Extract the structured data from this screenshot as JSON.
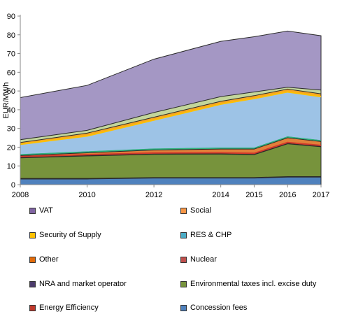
{
  "chart_data": {
    "type": "area",
    "stacked": true,
    "x": [
      2008,
      2010,
      2012,
      2014,
      2015,
      2016,
      2017
    ],
    "ylabel": "EUR/MWh",
    "ylim": [
      0,
      90
    ],
    "yticks": [
      0,
      10,
      20,
      30,
      40,
      50,
      60,
      70,
      80,
      90
    ],
    "xticks": [
      "2008",
      "2010",
      "2012",
      "2014",
      "2015",
      "2016",
      "2017"
    ],
    "grid": false,
    "legend_position": "bottom",
    "series": [
      {
        "name": "Concession fees",
        "color": "#4f81bd",
        "values": [
          3,
          3,
          3.5,
          3.5,
          3.5,
          4,
          4
        ]
      },
      {
        "name": "Energy Efficiency",
        "color": "#c0392b",
        "values": [
          0.3,
          0.3,
          0.3,
          0.3,
          0.3,
          0.3,
          0.3
        ]
      },
      {
        "name": "Environmental taxes incl. excise duty",
        "color": "#77933c",
        "values": [
          11,
          12,
          12.4,
          12.5,
          12.2,
          17.5,
          15.9
        ]
      },
      {
        "name": "NRA and market operator",
        "color": "#4b3b6b",
        "values": [
          0.2,
          0.2,
          0.2,
          0.2,
          0.2,
          0.2,
          0.2
        ]
      },
      {
        "name": "Nuclear",
        "color": "#c0504d",
        "values": [
          0.5,
          0.5,
          0.5,
          0.5,
          0.5,
          0.5,
          0.5
        ]
      },
      {
        "name": "Other",
        "color": "#e26b0a",
        "values": [
          0.5,
          1,
          1.6,
          2,
          2.3,
          2.5,
          2.1
        ]
      },
      {
        "name": "RES & CHP",
        "color": "#4bacc6",
        "values": [
          0.5,
          0.5,
          0.5,
          0.5,
          0.5,
          0.5,
          0.5
        ]
      },
      {
        "name": "Security of Supply",
        "color": "#ffc000",
        "values": [
          0,
          0,
          0,
          0,
          0,
          0,
          0
        ]
      },
      {
        "name": "Social",
        "color": "#f7dc6f",
        "values": [
          5,
          8.5,
          15.5,
          23.5,
          26.5,
          24,
          23.5
        ]
      },
      {
        "name": "VAT",
        "color": "#a497c4",
        "values": [
          1,
          1,
          1,
          1,
          1,
          1,
          1
        ]
      }
    ],
    "stack_layers": [
      {
        "name": "Concession fees",
        "color": "#4f81bd",
        "top": [
          3,
          3,
          3.5,
          3.5,
          3.5,
          4,
          4
        ]
      },
      {
        "name": "Energy Efficiency",
        "color": "#c0392b",
        "top": [
          3.3,
          3.3,
          3.8,
          3.8,
          3.8,
          4.3,
          4.3
        ]
      },
      {
        "name": "Environmental taxes incl. excise duty",
        "color": "#77933c",
        "top": [
          14.3,
          15.3,
          16.2,
          16.3,
          16,
          21.8,
          20.2
        ]
      },
      {
        "name": "NRA and market operator",
        "color": "#4b3b6b",
        "top": [
          14.5,
          15.5,
          16.4,
          16.5,
          16.2,
          22,
          20.4
        ]
      },
      {
        "name": "Nuclear",
        "color": "#c0504d",
        "top": [
          15,
          16,
          16.9,
          17,
          16.7,
          22.5,
          20.9
        ]
      },
      {
        "name": "Other",
        "color": "#e26b0a",
        "top": [
          15.5,
          17,
          18.5,
          19,
          19,
          25,
          23
        ]
      },
      {
        "name": "RES & CHP",
        "color": "#4bacc6",
        "top": [
          16,
          17.5,
          19,
          19.5,
          19.5,
          25.5,
          23.5
        ]
      },
      {
        "name": "Security of Supply",
        "color": "#ffc000",
        "top": [
          21.5,
          26,
          34.5,
          43,
          46,
          49.5,
          47
        ]
      },
      {
        "name": "Social",
        "color": "#f7dc6f",
        "top": [
          22.5,
          27.5,
          36,
          44.5,
          47.5,
          51,
          48.5
        ]
      },
      {
        "name": "VAT",
        "color": "#a497c4",
        "top": [
          24,
          29,
          38.5,
          47,
          49.5,
          52,
          50.5
        ]
      },
      {
        "name": "total",
        "color": "#8064a2",
        "top": [
          46.5,
          53,
          67,
          76.5,
          79,
          82,
          79.5
        ]
      }
    ]
  },
  "legend": [
    {
      "label": "VAT",
      "color": "#8064a2"
    },
    {
      "label": "Social",
      "color": "#f79646"
    },
    {
      "label": "Security of Supply",
      "color": "#ffc000"
    },
    {
      "label": "RES & CHP",
      "color": "#4bacc6"
    },
    {
      "label": "Other",
      "color": "#e26b0a"
    },
    {
      "label": "Nuclear",
      "color": "#c0504d"
    },
    {
      "label": "NRA and market operator",
      "color": "#4b3b6b"
    },
    {
      "label": "Environmental taxes incl. excise duty",
      "color": "#77933c"
    },
    {
      "label": "Energy Efficiency",
      "color": "#c0392b"
    },
    {
      "label": "Concession fees",
      "color": "#4f81bd"
    }
  ]
}
